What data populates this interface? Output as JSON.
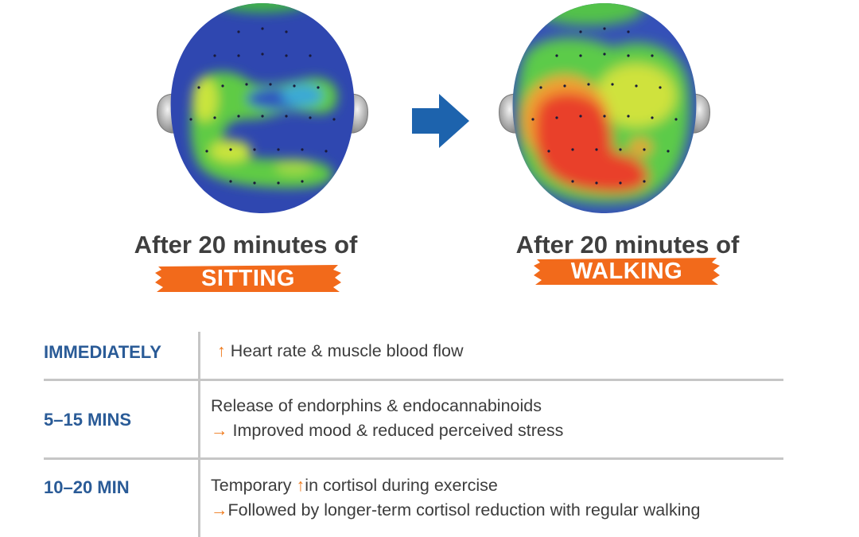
{
  "colors": {
    "accent_orange": "#f26a1b",
    "label_blue": "#2a5b97",
    "arrow_blue": "#1d63ad",
    "heat_blue": "#2f47b0",
    "heat_green": "#4fc24e",
    "heat_yellow": "#d9e43a",
    "heat_red": "#e8382a"
  },
  "heads": {
    "sitting": {
      "caption": "After 20 minutes of",
      "label": "SITTING"
    },
    "walking": {
      "caption": "After 20 minutes of",
      "label": "WALKING"
    }
  },
  "arrow_icon": "right-arrow-icon",
  "timeline": [
    {
      "label": "IMMEDIATELY",
      "lines": [
        {
          "arrow": "↑",
          "text": " Heart rate & muscle blood flow"
        }
      ]
    },
    {
      "label": "5–15 MINS",
      "lines": [
        {
          "arrow": "",
          "text": "Release of endorphins & endocannabinoids"
        },
        {
          "arrow": "→",
          "text": " Improved mood & reduced perceived stress"
        }
      ]
    },
    {
      "label": "10–20 MIN",
      "lines": [
        {
          "prefix": "Temporary ",
          "arrow": "↑",
          "text": "in cortisol during exercise"
        },
        {
          "arrow": "→",
          "text": "Followed by longer-term cortisol reduction with regular walking"
        }
      ]
    }
  ]
}
